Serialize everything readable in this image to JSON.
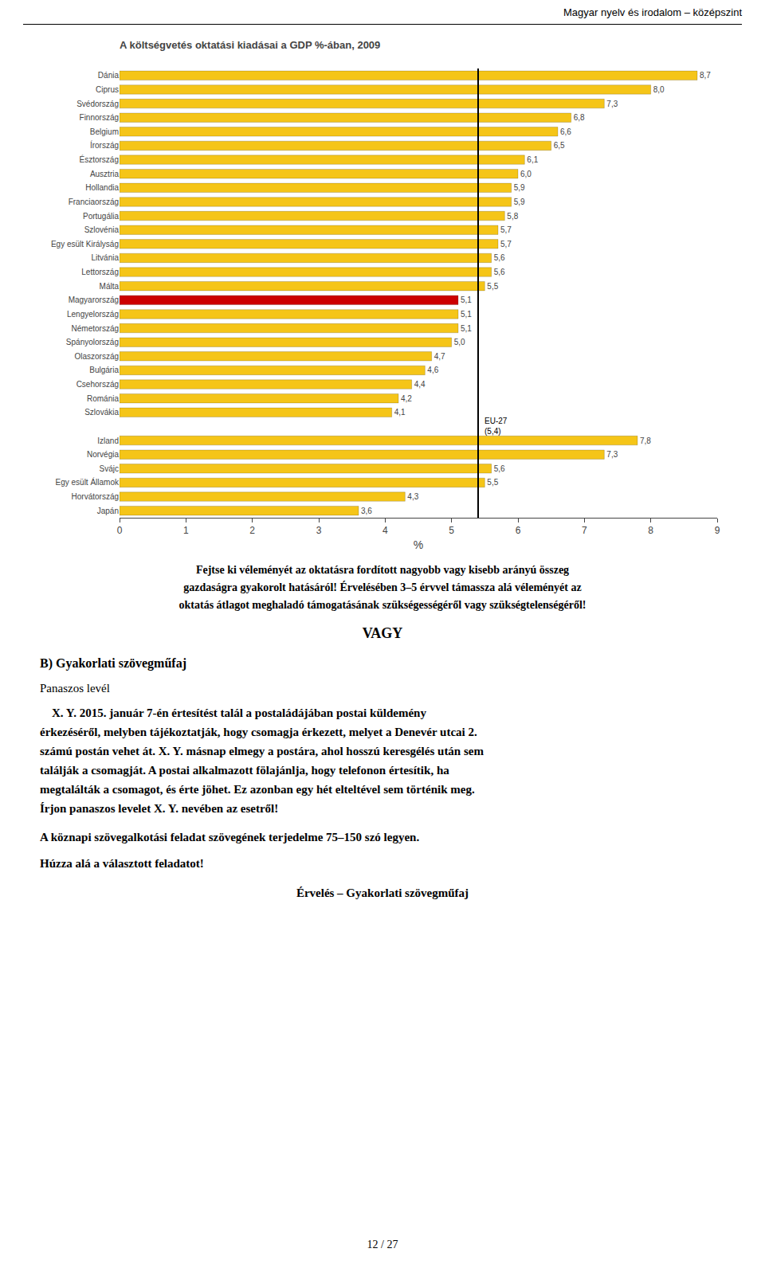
{
  "chart_data": {
    "type": "bar",
    "orientation": "horizontal",
    "title": "A költségvetés oktatási kiadásai a GDP %-ában, 2009",
    "xlabel": "%",
    "categories": [
      "Dánia",
      "Ciprus",
      "Svédország",
      "Finnország",
      "Belgium",
      "Írország",
      "Észtország",
      "Ausztria",
      "Hollandia",
      "Franciaország",
      "Portugália",
      "Szlovénia",
      "Egy esült Királyság",
      "Litvánia",
      "Lettország",
      "Málta",
      "Magyarország",
      "Lengyelország",
      "Németország",
      "Spányolország",
      "Olaszország",
      "Bulgária",
      "Csehország",
      "Románia",
      "Szlovákia",
      null,
      "Izland",
      "Norvégia",
      "Svájc",
      "Egy esült Államok",
      "Horvátország",
      "Japán"
    ],
    "values": [
      8.7,
      8.0,
      7.3,
      6.8,
      6.6,
      6.5,
      6.1,
      6.0,
      5.9,
      5.9,
      5.8,
      5.7,
      5.7,
      5.6,
      5.6,
      5.5,
      5.1,
      5.1,
      5.1,
      5.0,
      4.7,
      4.6,
      4.4,
      4.2,
      4.1,
      null,
      7.8,
      7.3,
      5.6,
      5.5,
      4.3,
      3.6
    ],
    "value_labels": [
      "8,7",
      "8,0",
      "7,3",
      "6,8",
      "6,6",
      "6,5",
      "6,1",
      "6,0",
      "5,9",
      "5,9",
      "5,8",
      "5,7",
      "5,7",
      "5,6",
      "5,6",
      "5,5",
      "5,1",
      "5,1",
      "5,1",
      "5,0",
      "4,7",
      "4,6",
      "4,4",
      "4,2",
      "4,1",
      null,
      "7,8",
      "7,3",
      "5,6",
      "5,5",
      "4,3",
      "3,6"
    ],
    "colors": [
      "#F5C518",
      "#F5C518",
      "#F5C518",
      "#F5C518",
      "#F5C518",
      "#F5C518",
      "#F5C518",
      "#F5C518",
      "#F5C518",
      "#F5C518",
      "#F5C518",
      "#F5C518",
      "#F5C518",
      "#F5C518",
      "#F5C518",
      "#F5C518",
      "#CC0000",
      "#F5C518",
      "#F5C518",
      "#F5C518",
      "#F5C518",
      "#F5C518",
      "#F5C518",
      "#F5C518",
      "#F5C518",
      null,
      "#F5C518",
      "#F5C518",
      "#F5C518",
      "#F5C518",
      "#F5C518",
      "#F5C518"
    ],
    "data_labels": true,
    "reference_line": {
      "value": 5.4,
      "label": "EU-27\n(5,4)"
    },
    "xlim": [
      0,
      9
    ],
    "xticks": [
      0,
      1,
      2,
      3,
      4,
      5,
      6,
      7,
      8,
      9
    ],
    "grid": false
  },
  "page_text": {
    "header": "Magyar nyelv és irodalom – középszint",
    "question_lines": [
      "Fejtse ki véleményét az oktatásra fordított nagyobb vagy kisebb arányú összeg",
      "gazdaságra gyakorolt hatásáról! Érvelésében 3–5 érvvel támassza alá véleményét az",
      "oktatás átlagot meghaladó támogatásának szükségességéről vagy szükségtelenségéről!"
    ],
    "vagy": "VAGY",
    "section_b_title": "B) Gyakorlati szövegműfaj",
    "subsection_title": "Panaszos levél",
    "para_lines": [
      "    X. Y. 2015. január 7-én értesítést talál a postaládájában postai küldemény",
      "érkezéséről, melyben tájékoztatják, hogy csomagja érkezett, melyet a Denevér utcai 2.",
      "számú postán vehet át. X. Y. másnap elmegy a postára, ahol hosszú keresgélés után sem",
      "találják a csomagját. A postai alkalmazott fölajánlja, hogy telefonon értesítik, ha",
      "megtalálták a csomagot, és érte jöhet. Ez azonban egy hét elteltével sem történik meg.",
      "Írjon panaszos levelet X. Y. nevében az esetről!"
    ],
    "note1": "A köznapi szövegalkotási feladat szövegének terjedelme 75–150 szó legyen.",
    "note2": "Húzza alá a választott feladatot!",
    "footer": "Érvelés – Gyakorlati szövegműfaj",
    "page_number": "12 / 27"
  }
}
